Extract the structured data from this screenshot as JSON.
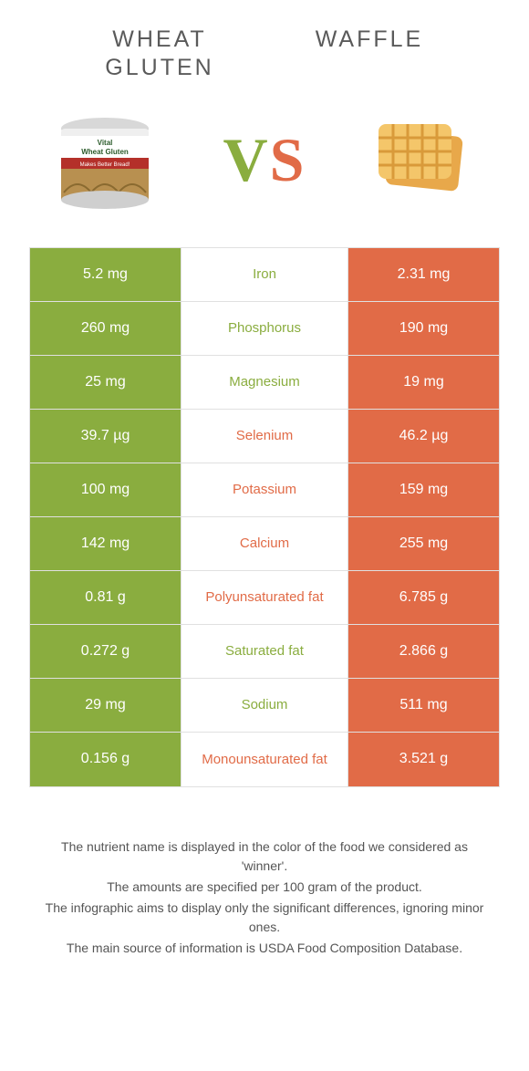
{
  "colors": {
    "left": "#8aad3f",
    "right": "#e16b47",
    "text": "#5a5a5a",
    "border": "#e0e0e0",
    "white": "#ffffff"
  },
  "header": {
    "left_title": "Wheat gluten",
    "right_title": "Waffle",
    "vs_v": "V",
    "vs_s": "S"
  },
  "images": {
    "left_alt": "wheat-gluten-jar",
    "right_alt": "waffle"
  },
  "rows": [
    {
      "left": "5.2 mg",
      "label": "Iron",
      "right": "2.31 mg",
      "winner": "left"
    },
    {
      "left": "260 mg",
      "label": "Phosphorus",
      "right": "190 mg",
      "winner": "left"
    },
    {
      "left": "25 mg",
      "label": "Magnesium",
      "right": "19 mg",
      "winner": "left"
    },
    {
      "left": "39.7 µg",
      "label": "Selenium",
      "right": "46.2 µg",
      "winner": "right"
    },
    {
      "left": "100 mg",
      "label": "Potassium",
      "right": "159 mg",
      "winner": "right"
    },
    {
      "left": "142 mg",
      "label": "Calcium",
      "right": "255 mg",
      "winner": "right"
    },
    {
      "left": "0.81 g",
      "label": "Polyunsaturated fat",
      "right": "6.785 g",
      "winner": "right"
    },
    {
      "left": "0.272 g",
      "label": "Saturated fat",
      "right": "2.866 g",
      "winner": "left"
    },
    {
      "left": "29 mg",
      "label": "Sodium",
      "right": "511 mg",
      "winner": "left"
    },
    {
      "left": "0.156 g",
      "label": "Monounsaturated fat",
      "right": "3.521 g",
      "winner": "right"
    }
  ],
  "footer": {
    "line1": "The nutrient name is displayed in the color of the food we considered as 'winner'.",
    "line2": "The amounts are specified per 100 gram of the product.",
    "line3": "The infographic aims to display only the significant differences, ignoring minor ones.",
    "line4": "The main source of information is USDA Food Composition Database."
  }
}
